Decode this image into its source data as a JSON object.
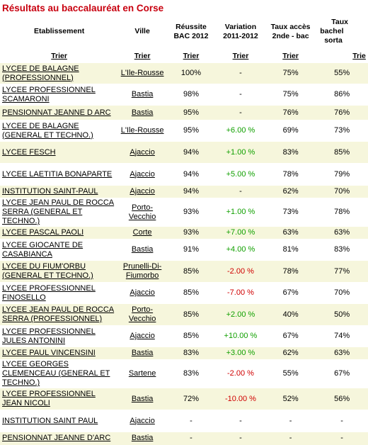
{
  "title": "Résultats au baccalauréat en Corse",
  "columns": {
    "etablissement": "Etablissement",
    "ville": "Ville",
    "reussite_l1": "Réussite",
    "reussite_l2": "BAC 2012",
    "variation_l1": "Variation",
    "variation_l2": "2011-2012",
    "taux_l1": "Taux accès",
    "taux_l2": "2nde - bac",
    "bach_l1": "Taux",
    "bach_l2": "bachel",
    "bach_l3": "sorta"
  },
  "sort_label": "Trier",
  "sort_label_cut": "Trie",
  "rows": [
    {
      "etab": "LYCEE DE BALAGNE (PROFESSIONNEL)",
      "ville": "L'Ile-Rousse",
      "reussite": "100%",
      "variation": "-",
      "var_type": "none",
      "taux": "75%",
      "bach": "55%",
      "h": 30
    },
    {
      "etab": "LYCEE PROFESSIONNEL SCAMARONI",
      "ville": "Bastia",
      "reussite": "98%",
      "variation": "-",
      "var_type": "none",
      "taux": "75%",
      "bach": "86%",
      "h": 30
    },
    {
      "etab": "PENSIONNAT JEANNE D ARC",
      "ville": "Bastia",
      "reussite": "95%",
      "variation": "-",
      "var_type": "none",
      "taux": "76%",
      "bach": "76%",
      "h": 21
    },
    {
      "etab": "LYCEE DE BALAGNE (GENERAL ET TECHNO.)",
      "ville": "L'Ile-Rousse",
      "reussite": "95%",
      "variation": "+6.00 %",
      "var_type": "pos",
      "taux": "69%",
      "bach": "73%",
      "h": 30
    },
    {
      "etab": "LYCEE FESCH",
      "ville": "Ajaccio",
      "reussite": "94%",
      "variation": "+1.00 %",
      "var_type": "pos",
      "taux": "83%",
      "bach": "85%",
      "h": 31
    },
    {
      "etab": "LYCEE LAETITIA BONAPARTE",
      "ville": "Ajaccio",
      "reussite": "94%",
      "variation": "+5.00 %",
      "var_type": "pos",
      "taux": "78%",
      "bach": "79%",
      "h": 31
    },
    {
      "etab": "INSTITUTION SAINT-PAUL",
      "ville": "Ajaccio",
      "reussite": "94%",
      "variation": "-",
      "var_type": "none",
      "taux": "62%",
      "bach": "70%",
      "h": 18
    },
    {
      "etab": "LYCEE JEAN PAUL DE ROCCA SERRA (GENERAL ET TECHNO.)",
      "ville": "Porto-Vecchio",
      "reussite": "93%",
      "variation": "+1.00 %",
      "var_type": "pos",
      "taux": "73%",
      "bach": "78%",
      "h": 31
    },
    {
      "etab": "LYCEE PASCAL PAOLI",
      "ville": "Corte",
      "reussite": "93%",
      "variation": "+7.00 %",
      "var_type": "pos",
      "taux": "63%",
      "bach": "63%",
      "h": 18
    },
    {
      "etab": "LYCEE GIOCANTE DE CASABIANCA",
      "ville": "Bastia",
      "reussite": "91%",
      "variation": "+4.00 %",
      "var_type": "pos",
      "taux": "81%",
      "bach": "83%",
      "h": 30
    },
    {
      "etab": "LYCEE DU FIUM'ORBU (GENERAL ET TECHNO.)",
      "ville": "Prunelli-Di-Fiumorbo",
      "reussite": "85%",
      "variation": "-2.00 %",
      "var_type": "neg",
      "taux": "78%",
      "bach": "77%",
      "h": 31
    },
    {
      "etab": "LYCEE PROFESSIONNEL FINOSELLO",
      "ville": "Ajaccio",
      "reussite": "85%",
      "variation": "-7.00 %",
      "var_type": "neg",
      "taux": "67%",
      "bach": "70%",
      "h": 30
    },
    {
      "etab": "LYCEE JEAN PAUL DE ROCCA SERRA (PROFESSIONNEL)",
      "ville": "Porto-Vecchio",
      "reussite": "85%",
      "variation": "+2.00 %",
      "var_type": "pos",
      "taux": "40%",
      "bach": "50%",
      "h": 31
    },
    {
      "etab": "LYCEE PROFESSIONNEL JULES ANTONINI",
      "ville": "Ajaccio",
      "reussite": "85%",
      "variation": "+10.00 %",
      "var_type": "pos",
      "taux": "67%",
      "bach": "74%",
      "h": 30
    },
    {
      "etab": "LYCEE PAUL VINCENSINI",
      "ville": "Bastia",
      "reussite": "83%",
      "variation": "+3.00 %",
      "var_type": "pos",
      "taux": "62%",
      "bach": "63%",
      "h": 18
    },
    {
      "etab": "LYCEE GEORGES CLEMENCEAU (GENERAL ET TECHNO.)",
      "ville": "Sartene",
      "reussite": "83%",
      "variation": "-2.00 %",
      "var_type": "neg",
      "taux": "55%",
      "bach": "67%",
      "h": 31
    },
    {
      "etab": "LYCEE PROFESSIONNEL JEAN NICOLI",
      "ville": "Bastia",
      "reussite": "72%",
      "variation": "-10.00 %",
      "var_type": "neg",
      "taux": "52%",
      "bach": "56%",
      "h": 31
    },
    {
      "etab": "INSTITUTION SAINT PAUL",
      "ville": "Ajaccio",
      "reussite": "-",
      "variation": "-",
      "var_type": "none",
      "taux": "-",
      "bach": "-",
      "h": 31
    },
    {
      "etab": "PENSIONNAT JEANNE D'ARC",
      "ville": "Bastia",
      "reussite": "-",
      "variation": "-",
      "var_type": "none",
      "taux": "-",
      "bach": "-",
      "h": 18
    }
  ]
}
